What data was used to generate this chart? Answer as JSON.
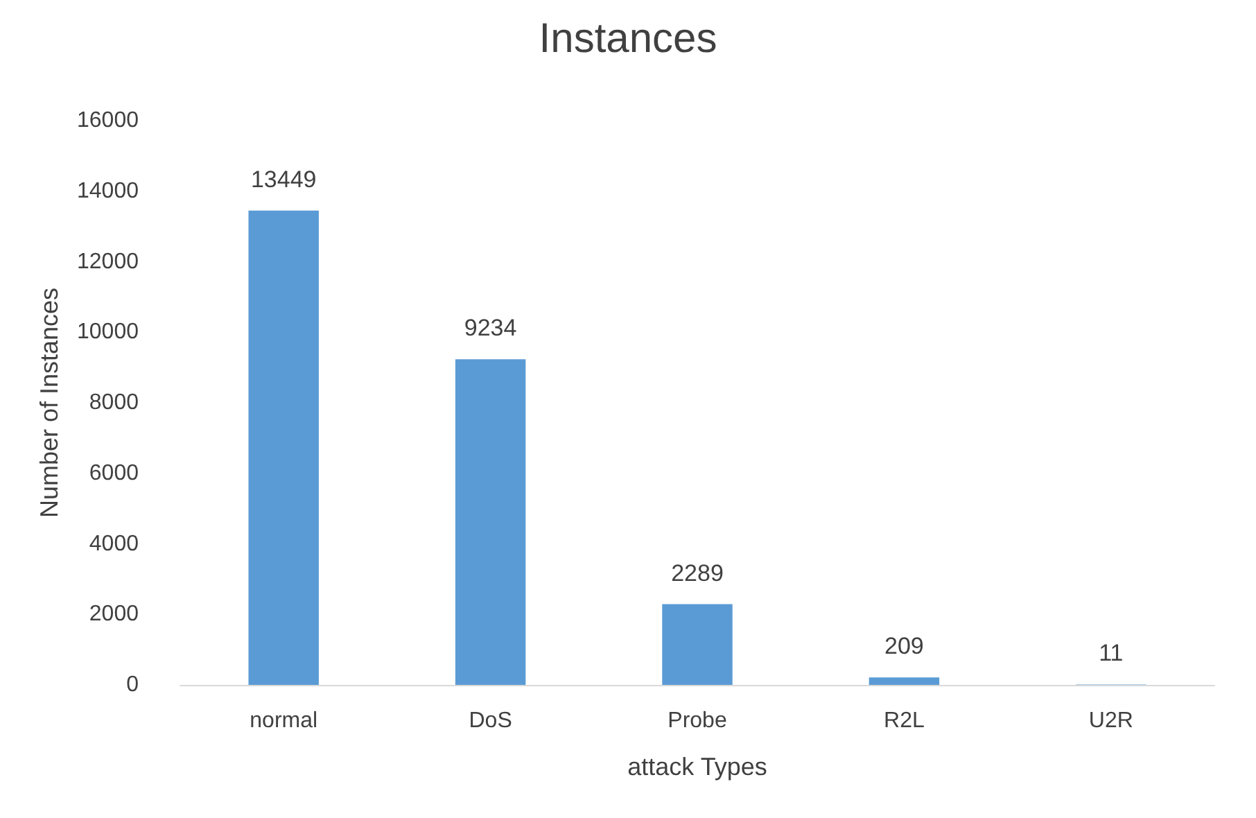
{
  "chart_data": {
    "type": "bar",
    "title": "Instances",
    "xlabel": "attack Types",
    "ylabel": "Number of Instances",
    "categories": [
      "normal",
      "DoS",
      "Probe",
      "R2L",
      "U2R"
    ],
    "values": [
      13449,
      9234,
      2289,
      209,
      11
    ],
    "color": "#5b9bd5",
    "ylim": [
      0,
      16000
    ],
    "yticks": [
      0,
      2000,
      4000,
      6000,
      8000,
      10000,
      12000,
      14000,
      16000
    ],
    "grid": false,
    "data_labels": true
  }
}
